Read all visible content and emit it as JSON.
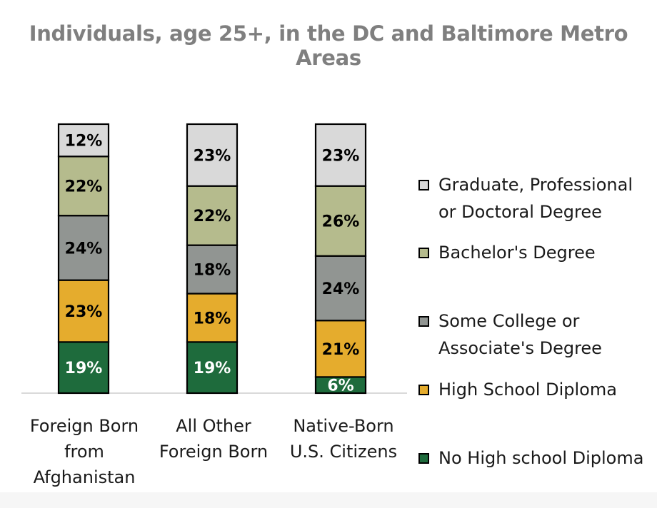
{
  "chart_data": {
    "type": "bar",
    "stacked": true,
    "title": "Individuals, age 25+, in the DC  and Baltimore Metro Areas",
    "categories": [
      "Foreign Born from Afghanistan",
      "All Other Foreign Born",
      "Native-Born U.S. Citizens"
    ],
    "category_lines": [
      [
        "Foreign Born",
        "from",
        "Afghanistan"
      ],
      [
        "All Other",
        "Foreign Born"
      ],
      [
        "Native-Born",
        "U.S. Citizens"
      ]
    ],
    "series": [
      {
        "name": "No High school Diploma",
        "color": "#1e6b3c",
        "label_color": "#ffffff",
        "values": [
          19,
          19,
          6
        ]
      },
      {
        "name": "High School Diploma",
        "color": "#e5ac2d",
        "label_color": "#000000",
        "values": [
          23,
          18,
          21
        ]
      },
      {
        "name": "Some College or Associate's Degree",
        "color": "#919592",
        "label_color": "#000000",
        "values": [
          24,
          18,
          24
        ]
      },
      {
        "name": "Bachelor's Degree",
        "color": "#b5bb8d",
        "label_color": "#000000",
        "values": [
          22,
          22,
          26
        ]
      },
      {
        "name": "Graduate, Professional or Doctoral Degree",
        "color": "#d9d9d9",
        "label_color": "#000000",
        "values": [
          12,
          23,
          23
        ]
      }
    ],
    "data_labels": [
      [
        "19%",
        "19%",
        "6%"
      ],
      [
        "23%",
        "18%",
        "21%"
      ],
      [
        "24%",
        "18%",
        "24%"
      ],
      [
        "22%",
        "22%",
        "26%"
      ],
      [
        "12%",
        "23%",
        "23%"
      ]
    ],
    "legend": {
      "placement": "right",
      "items": [
        {
          "lines": [
            "Graduate, Professional",
            "or Doctoral Degree"
          ],
          "color": "#d9d9d9"
        },
        {
          "lines": [
            "Bachelor's Degree"
          ],
          "color": "#b5bb8d"
        },
        {
          "lines": [
            "Some College or",
            "Associate's Degree"
          ],
          "color": "#919592"
        },
        {
          "lines": [
            "High School Diploma"
          ],
          "color": "#e5ac2d"
        },
        {
          "lines": [
            "No High school Diploma"
          ],
          "color": "#1e6b3c"
        }
      ]
    },
    "ylim": [
      0,
      100
    ],
    "y_axis_shown": false,
    "grid": false
  }
}
